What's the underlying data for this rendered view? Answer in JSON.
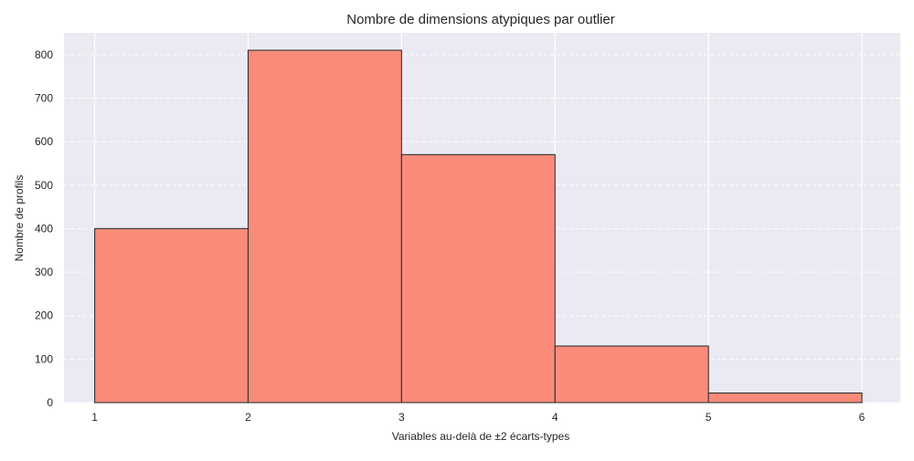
{
  "chart_data": {
    "type": "bar",
    "title": "Nombre de dimensions atypiques par outlier",
    "xlabel": "Variables au-delà de ±2 écarts-types",
    "ylabel": "Nombre de profils",
    "bins": [
      [
        1,
        2
      ],
      [
        2,
        3
      ],
      [
        3,
        4
      ],
      [
        4,
        5
      ],
      [
        5,
        6
      ]
    ],
    "values": [
      400,
      810,
      570,
      130,
      22
    ],
    "xlim": [
      0.8,
      6.25
    ],
    "ylim": [
      0,
      850
    ],
    "xticks": [
      "1",
      "2",
      "3",
      "4",
      "5",
      "6"
    ],
    "yticks": [
      "0",
      "100",
      "200",
      "300",
      "400",
      "500",
      "600",
      "700",
      "800"
    ],
    "grid": true,
    "colors": {
      "bar_fill": "#fa8b7b",
      "bar_edge": "#333333",
      "plot_bg": "#eaeaf2",
      "grid": "#ffffff"
    }
  }
}
